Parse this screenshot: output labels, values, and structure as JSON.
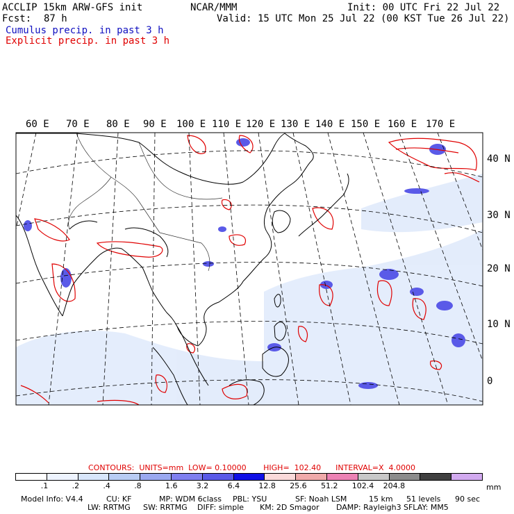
{
  "header": {
    "model_title": "ACCLIP 15km ARW-GFS init",
    "org": "NCAR/MMM",
    "init": "Init: 00 UTC Fri 22 Jul 22",
    "fcst_label": "Fcst:",
    "fcst_value": "87 h",
    "valid": "Valid: 15 UTC Mon 25 Jul 22 (00 KST Tue 26 Jul 22)",
    "legend_cumulus": "Cumulus precip. in past 3 h",
    "legend_explicit": "Explicit precip. in past 3 h",
    "colors": {
      "cumulus": "#1010c0",
      "explicit": "#e00000"
    }
  },
  "map": {
    "lon_labels": [
      "60 E",
      "70 E",
      "80 E",
      "90 E",
      "100 E",
      "110 E",
      "120 E",
      "130 E",
      "140 E",
      "150 E",
      "160 E",
      "170 E"
    ],
    "lat_labels": [
      "40 N",
      "30 N",
      "20 N",
      "10 N",
      "0"
    ]
  },
  "contours": {
    "text": "CONTOURS:  UNITS=mm  LOW= 0.10000       HIGH=  102.40      INTERVAL=X  4.0000"
  },
  "colorbar": {
    "colors": [
      "#ffffff",
      "#eef4ff",
      "#d8e6fb",
      "#b8ccf4",
      "#9aa8f0",
      "#7f7ff0",
      "#5a5ae8",
      "#1010e6",
      "#fadada",
      "#f0aaaa",
      "#ec82b4",
      "#c8c8c8",
      "#8c8c8c",
      "#404040",
      "#d2aaf0"
    ],
    "ticks": [
      ".1",
      ".2",
      ".4",
      ".8",
      "1.6",
      "3.2",
      "6.4",
      "12.8",
      "25.6",
      "51.2",
      "102.4",
      "204.8"
    ],
    "units": "mm"
  },
  "footer": {
    "line1": [
      "Model Info: V4.4",
      "CU: KF",
      "MP: WDM 6class",
      "PBL: YSU",
      "SF: Noah LSM",
      "15 km",
      "51 levels",
      "90 sec"
    ],
    "line2": [
      "LW: RRTMG",
      "SW: RRTMG",
      "DIFF: simple",
      "KM: 2D Smagor",
      "DAMP: Rayleigh3",
      "SFLAY: MM5"
    ]
  }
}
